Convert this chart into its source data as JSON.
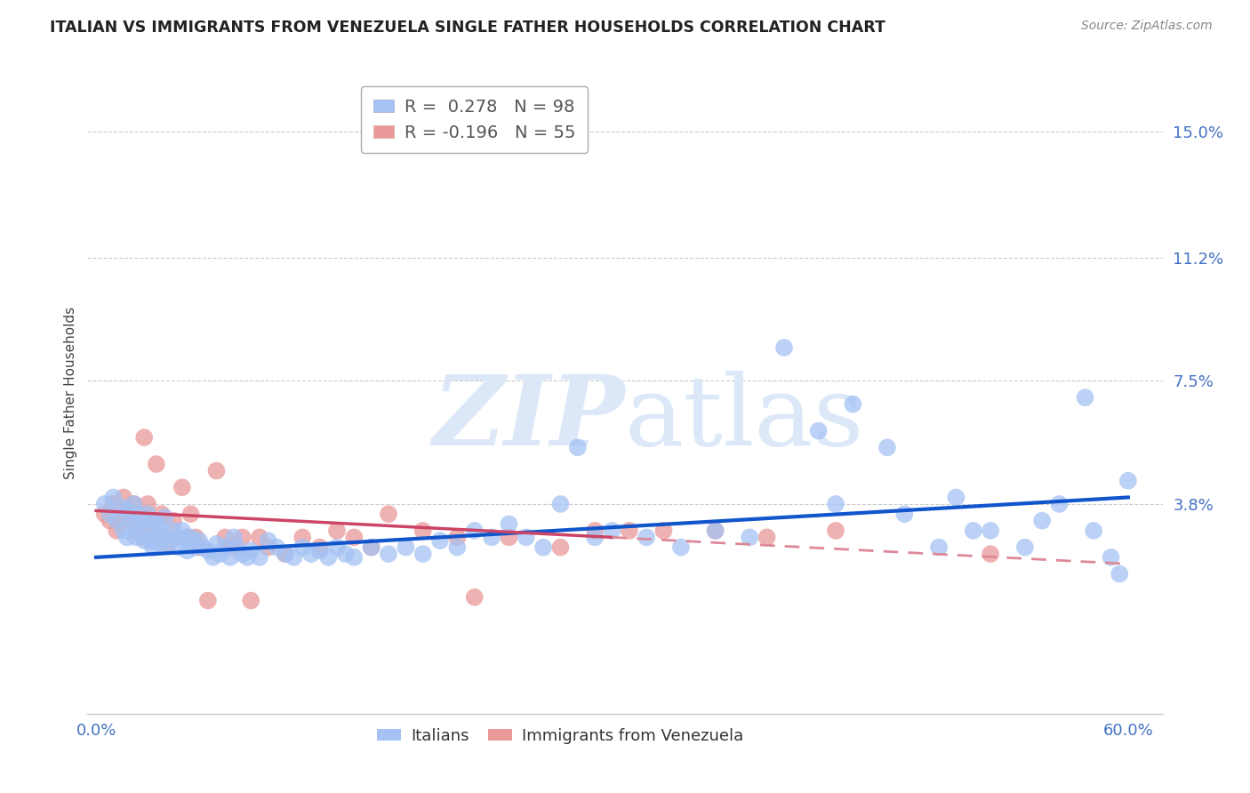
{
  "title": "ITALIAN VS IMMIGRANTS FROM VENEZUELA SINGLE FATHER HOUSEHOLDS CORRELATION CHART",
  "source": "Source: ZipAtlas.com",
  "ylabel": "Single Father Households",
  "ytick_labels": [
    "3.8%",
    "7.5%",
    "11.2%",
    "15.0%"
  ],
  "ytick_values": [
    0.038,
    0.075,
    0.112,
    0.15
  ],
  "xlim": [
    -0.005,
    0.62
  ],
  "ylim": [
    -0.025,
    0.168
  ],
  "legend_blue_r": "0.278",
  "legend_blue_n": "98",
  "legend_pink_r": "-0.196",
  "legend_pink_n": "55",
  "legend_label_blue": "Italians",
  "legend_label_pink": "Immigrants from Venezuela",
  "blue_color": "#a4c2f4",
  "pink_color": "#ea9999",
  "trendline_blue_color": "#1155cc",
  "trendline_pink_solid_color": "#cc4466",
  "trendline_pink_dashed_color": "#dd8899",
  "background_color": "#ffffff",
  "watermark_color": "#dce8f8",
  "blue_scatter_x": [
    0.005,
    0.008,
    0.01,
    0.012,
    0.015,
    0.016,
    0.018,
    0.018,
    0.02,
    0.022,
    0.022,
    0.023,
    0.025,
    0.025,
    0.027,
    0.028,
    0.03,
    0.03,
    0.032,
    0.032,
    0.033,
    0.035,
    0.036,
    0.037,
    0.038,
    0.04,
    0.04,
    0.042,
    0.045,
    0.047,
    0.048,
    0.05,
    0.052,
    0.053,
    0.055,
    0.057,
    0.06,
    0.062,
    0.065,
    0.068,
    0.07,
    0.072,
    0.075,
    0.078,
    0.08,
    0.082,
    0.085,
    0.088,
    0.09,
    0.095,
    0.1,
    0.105,
    0.11,
    0.115,
    0.12,
    0.125,
    0.13,
    0.135,
    0.14,
    0.145,
    0.15,
    0.16,
    0.17,
    0.18,
    0.19,
    0.2,
    0.21,
    0.22,
    0.23,
    0.24,
    0.25,
    0.26,
    0.27,
    0.28,
    0.29,
    0.3,
    0.32,
    0.34,
    0.36,
    0.38,
    0.4,
    0.42,
    0.43,
    0.44,
    0.46,
    0.47,
    0.49,
    0.5,
    0.51,
    0.52,
    0.54,
    0.55,
    0.56,
    0.575,
    0.58,
    0.59,
    0.595,
    0.6
  ],
  "blue_scatter_y": [
    0.038,
    0.035,
    0.04,
    0.033,
    0.037,
    0.03,
    0.036,
    0.028,
    0.034,
    0.038,
    0.032,
    0.028,
    0.035,
    0.03,
    0.033,
    0.027,
    0.035,
    0.028,
    0.033,
    0.027,
    0.025,
    0.032,
    0.028,
    0.026,
    0.03,
    0.034,
    0.028,
    0.026,
    0.03,
    0.028,
    0.025,
    0.03,
    0.028,
    0.024,
    0.028,
    0.025,
    0.027,
    0.025,
    0.024,
    0.022,
    0.026,
    0.023,
    0.025,
    0.022,
    0.028,
    0.025,
    0.023,
    0.022,
    0.024,
    0.022,
    0.027,
    0.025,
    0.023,
    0.022,
    0.025,
    0.023,
    0.024,
    0.022,
    0.025,
    0.023,
    0.022,
    0.025,
    0.023,
    0.025,
    0.023,
    0.027,
    0.025,
    0.03,
    0.028,
    0.032,
    0.028,
    0.025,
    0.038,
    0.055,
    0.028,
    0.03,
    0.028,
    0.025,
    0.03,
    0.028,
    0.085,
    0.06,
    0.038,
    0.068,
    0.055,
    0.035,
    0.025,
    0.04,
    0.03,
    0.03,
    0.025,
    0.033,
    0.038,
    0.07,
    0.03,
    0.022,
    0.017,
    0.045
  ],
  "pink_scatter_x": [
    0.005,
    0.008,
    0.01,
    0.012,
    0.015,
    0.016,
    0.018,
    0.02,
    0.022,
    0.023,
    0.025,
    0.027,
    0.028,
    0.03,
    0.032,
    0.033,
    0.035,
    0.037,
    0.038,
    0.04,
    0.042,
    0.045,
    0.047,
    0.05,
    0.053,
    0.055,
    0.058,
    0.06,
    0.065,
    0.07,
    0.075,
    0.08,
    0.085,
    0.09,
    0.095,
    0.1,
    0.11,
    0.12,
    0.13,
    0.14,
    0.15,
    0.16,
    0.17,
    0.19,
    0.21,
    0.22,
    0.24,
    0.27,
    0.29,
    0.31,
    0.33,
    0.36,
    0.39,
    0.43,
    0.52
  ],
  "pink_scatter_y": [
    0.035,
    0.033,
    0.038,
    0.03,
    0.033,
    0.04,
    0.035,
    0.033,
    0.038,
    0.03,
    0.035,
    0.028,
    0.058,
    0.038,
    0.032,
    0.028,
    0.05,
    0.028,
    0.035,
    0.028,
    0.026,
    0.033,
    0.028,
    0.043,
    0.028,
    0.035,
    0.028,
    0.025,
    0.009,
    0.048,
    0.028,
    0.025,
    0.028,
    0.009,
    0.028,
    0.025,
    0.023,
    0.028,
    0.025,
    0.03,
    0.028,
    0.025,
    0.035,
    0.03,
    0.028,
    0.01,
    0.028,
    0.025,
    0.03,
    0.03,
    0.03,
    0.03,
    0.028,
    0.03,
    0.023
  ],
  "blue_trend_x0": 0.0,
  "blue_trend_y0": 0.022,
  "blue_trend_x1": 0.6,
  "blue_trend_y1": 0.04,
  "pink_trend_x0": 0.0,
  "pink_trend_y0": 0.036,
  "pink_trend_x1_solid": 0.3,
  "pink_trend_y1_solid": 0.028,
  "pink_trend_x1_dashed": 0.6,
  "pink_trend_y1_dashed": 0.02
}
